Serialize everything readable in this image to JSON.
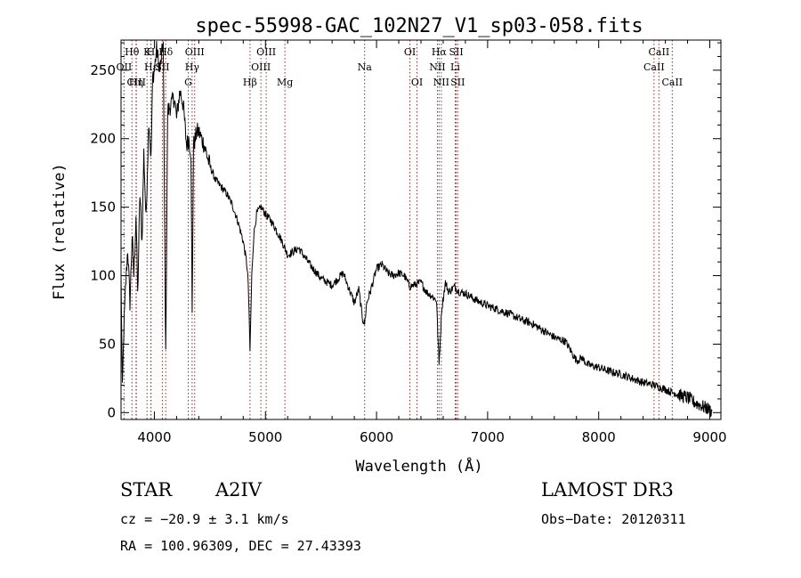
{
  "chart_data": {
    "type": "line",
    "title": "spec-55998-GAC_102N27_V1_sp03-058.fits",
    "xlabel": "Wavelength (Å)",
    "ylabel": "Flux (relative)",
    "xlim": [
      3700,
      9100
    ],
    "ylim": [
      -5,
      272
    ],
    "xticks": [
      4000,
      5000,
      6000,
      7000,
      8000,
      9000
    ],
    "yticks": [
      0,
      50,
      100,
      150,
      200,
      250
    ],
    "colors": {
      "spectrum": "#000000",
      "lines": "#b22222",
      "axes": "#000000",
      "line_labels": "#000000"
    },
    "spectrum_anchors": {
      "x": [
        3700,
        3712,
        3725,
        3740,
        3760,
        3780,
        3800,
        3815,
        3835,
        3850,
        3870,
        3889,
        3905,
        3925,
        3950,
        3970,
        3985,
        4000,
        4020,
        4050,
        4080,
        4102,
        4120,
        4150,
        4180,
        4200,
        4230,
        4260,
        4290,
        4310,
        4330,
        4340,
        4352,
        4370,
        4380,
        4400,
        4450,
        4500,
        4550,
        4600,
        4650,
        4700,
        4750,
        4800,
        4830,
        4845,
        4861,
        4877,
        4895,
        4920,
        4960,
        5000,
        5050,
        5100,
        5150,
        5200,
        5300,
        5400,
        5500,
        5600,
        5700,
        5800,
        5840,
        5875,
        5893,
        5912,
        5950,
        6000,
        6050,
        6100,
        6150,
        6200,
        6250,
        6300,
        6400,
        6450,
        6500,
        6540,
        6563,
        6586,
        6620,
        6650,
        6700,
        6750,
        6800,
        6900,
        7000,
        7100,
        7200,
        7300,
        7400,
        7500,
        7600,
        7700,
        7800,
        7850,
        7900,
        8000,
        8100,
        8200,
        8300,
        8400,
        8500,
        8600,
        8650,
        8700,
        8750,
        8800,
        8850,
        8900,
        8950,
        9000,
        9020
      ],
      "y": [
        100,
        15,
        60,
        90,
        120,
        80,
        130,
        100,
        145,
        85,
        160,
        125,
        190,
        140,
        215,
        185,
        245,
        250,
        265,
        250,
        270,
        40,
        220,
        225,
        230,
        215,
        235,
        225,
        195,
        200,
        190,
        70,
        195,
        200,
        205,
        205,
        195,
        180,
        170,
        165,
        160,
        152,
        140,
        125,
        110,
        95,
        45,
        100,
        130,
        145,
        150,
        145,
        140,
        133,
        125,
        115,
        120,
        108,
        98,
        93,
        102,
        80,
        90,
        68,
        65,
        80,
        90,
        105,
        108,
        102,
        100,
        102,
        100,
        92,
        95,
        88,
        85,
        82,
        35,
        75,
        95,
        88,
        92,
        88,
        87,
        82,
        78,
        75,
        72,
        68,
        65,
        60,
        55,
        52,
        38,
        40,
        35,
        33,
        30,
        28,
        25,
        22,
        20,
        17,
        15,
        14,
        12,
        11,
        8,
        6,
        4,
        2,
        1
      ]
    },
    "absorption_lines": [
      {
        "name": "Hθ",
        "wavelength": 3798,
        "row": 1
      },
      {
        "name": "OII",
        "wavelength": 3727,
        "row": 2
      },
      {
        "name": "CIII",
        "wavelength": 3838,
        "row": 3
      },
      {
        "name": "K",
        "wavelength": 3934,
        "row": 1
      },
      {
        "name": "H",
        "wavelength": 3968,
        "row": 1
      },
      {
        "name": "Hη",
        "wavelength": 3835,
        "row": 3
      },
      {
        "name": "Hε",
        "wavelength": 3970,
        "row": 2
      },
      {
        "name": "Hδ",
        "wavelength": 4102,
        "row": 1
      },
      {
        "name": "SII",
        "wavelength": 4072,
        "row": 2
      },
      {
        "name": "OIII",
        "wavelength": 4363,
        "row": 1
      },
      {
        "name": "Hγ",
        "wavelength": 4340,
        "row": 2
      },
      {
        "name": "G",
        "wavelength": 4305,
        "row": 3
      },
      {
        "name": "Hβ",
        "wavelength": 4861,
        "row": 3
      },
      {
        "name": "OIII",
        "wavelength": 5007,
        "row": 1
      },
      {
        "name": "OIII",
        "wavelength": 4959,
        "row": 2
      },
      {
        "name": "Mg",
        "wavelength": 5175,
        "row": 3
      },
      {
        "name": "Na",
        "wavelength": 5893,
        "row": 2
      },
      {
        "name": "OI",
        "wavelength": 6300,
        "row": 1
      },
      {
        "name": "OI",
        "wavelength": 6364,
        "row": 3
      },
      {
        "name": "Hα",
        "wavelength": 6563,
        "row": 1
      },
      {
        "name": "NII",
        "wavelength": 6548,
        "row": 2
      },
      {
        "name": "NII",
        "wavelength": 6583,
        "row": 3
      },
      {
        "name": "SII",
        "wavelength": 6717,
        "row": 1
      },
      {
        "name": "Li",
        "wavelength": 6708,
        "row": 2
      },
      {
        "name": "SII",
        "wavelength": 6731,
        "row": 3
      },
      {
        "name": "CaII",
        "wavelength": 8542,
        "row": 1
      },
      {
        "name": "CaII",
        "wavelength": 8498,
        "row": 2
      },
      {
        "name": "CaII",
        "wavelength": 8662,
        "row": 3
      }
    ]
  },
  "info": {
    "object_class": "STAR",
    "subclass": "A2IV",
    "survey": "LAMOST DR3",
    "cz": "cz = −20.9 ± 3.1 km/s",
    "obs_date": "Obs−Date: 20120311",
    "coords": "RA = 100.96309, DEC =  27.43393"
  }
}
